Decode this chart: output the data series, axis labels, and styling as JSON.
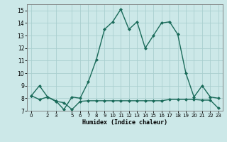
{
  "title": "",
  "xlabel": "Humidex (Indice chaleur)",
  "background_color": "#cce8e8",
  "grid_color": "#aacfcf",
  "line_color": "#1a6b5a",
  "xlim": [
    -0.5,
    23.5
  ],
  "ylim": [
    7,
    15.5
  ],
  "yticks": [
    7,
    8,
    9,
    10,
    11,
    12,
    13,
    14,
    15
  ],
  "xticks": [
    0,
    2,
    3,
    5,
    6,
    7,
    8,
    9,
    10,
    11,
    12,
    13,
    14,
    15,
    16,
    17,
    18,
    19,
    20,
    21,
    22,
    23
  ],
  "series1_x": [
    0,
    1,
    2,
    3,
    4,
    5,
    6,
    7,
    8,
    9,
    10,
    11,
    12,
    13,
    14,
    15,
    16,
    17,
    18,
    19,
    20,
    21,
    22,
    23
  ],
  "series1_y": [
    8.2,
    9.0,
    8.1,
    7.8,
    7.1,
    8.1,
    8.0,
    9.3,
    11.1,
    13.5,
    14.1,
    15.1,
    13.5,
    14.1,
    12.0,
    13.0,
    14.0,
    14.1,
    13.1,
    10.0,
    8.1,
    9.0,
    8.1,
    8.0
  ],
  "series2_x": [
    0,
    1,
    2,
    3,
    4,
    5,
    6,
    7,
    8,
    9,
    10,
    11,
    12,
    13,
    14,
    15,
    16,
    17,
    18,
    19,
    20,
    21,
    22,
    23
  ],
  "series2_y": [
    8.2,
    7.9,
    8.1,
    7.75,
    7.65,
    7.1,
    7.75,
    7.8,
    7.8,
    7.8,
    7.8,
    7.8,
    7.8,
    7.8,
    7.8,
    7.8,
    7.8,
    7.9,
    7.9,
    7.9,
    7.9,
    7.85,
    7.85,
    7.2
  ]
}
